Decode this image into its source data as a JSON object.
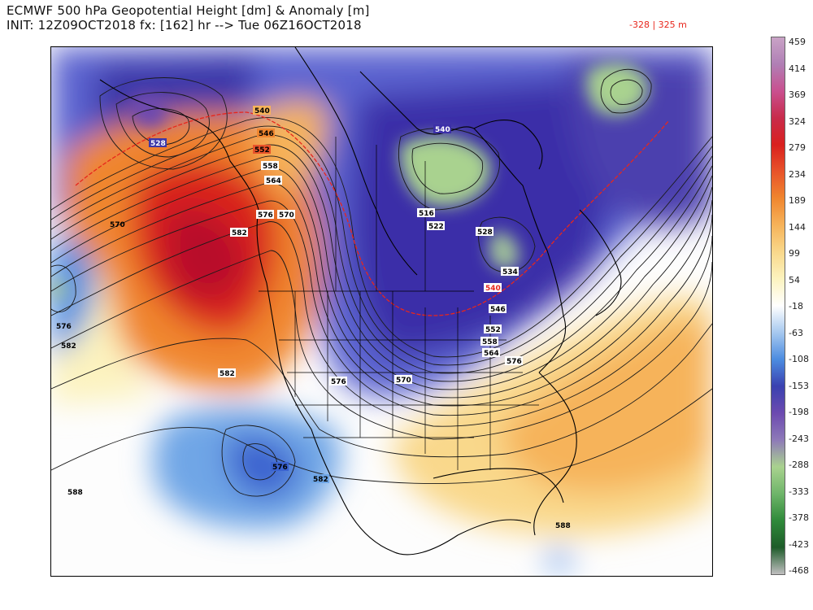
{
  "header": {
    "title_line1": "ECMWF 500 hPa Geopotential Height [dm] & Anomaly [m]",
    "title_line2": "INIT: 12Z09OCT2018 fx: [162] hr --> Tue 06Z16OCT2018",
    "range_text": "-328 | 325 m",
    "range_color": "#e8261c"
  },
  "colorbar": {
    "ticks": [
      "459",
      "414",
      "369",
      "324",
      "279",
      "234",
      "189",
      "144",
      "99",
      "54",
      "-18",
      "-63",
      "-108",
      "-153",
      "-198",
      "-243",
      "-288",
      "-333",
      "-378",
      "-423",
      "-468"
    ],
    "colors_top_to_bottom": [
      "#c9a3c6",
      "#b07fb5",
      "#c9508f",
      "#c82b4b",
      "#d9201e",
      "#e8532a",
      "#f0862f",
      "#f6b35a",
      "#f9d88b",
      "#fcf3bf",
      "#ffffff",
      "#a6c8ef",
      "#4c8ce0",
      "#3a41b0",
      "#6c4ab0",
      "#8e7ab8",
      "#a9d28f",
      "#6fb56a",
      "#2f8a3a",
      "#1e5c2a",
      "#bfbfbf"
    ]
  },
  "contour_labels": [
    "540",
    "546",
    "552",
    "558",
    "564",
    "576",
    "570",
    "582",
    "528",
    "570",
    "576",
    "582",
    "516",
    "522",
    "528",
    "534",
    "540",
    "546",
    "552",
    "558",
    "564",
    "570",
    "576",
    "576",
    "582",
    "582",
    "576",
    "588",
    "588",
    "540"
  ],
  "map": {
    "features": [
      "North America coastlines",
      "US state boundaries",
      "Canadian provinces",
      "Mexico"
    ],
    "anomaly_positive_color": "#d9201e",
    "anomaly_negative_color": "#3a41b0"
  }
}
